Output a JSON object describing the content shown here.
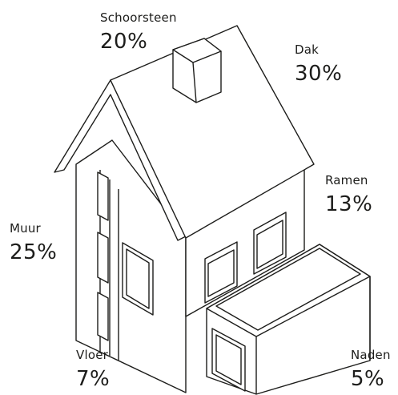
{
  "labels": {
    "chimney": {
      "name": "Schoorsteen",
      "pct": "20%"
    },
    "roof": {
      "name": "Dak",
      "pct": "30%"
    },
    "windows": {
      "name": "Ramen",
      "pct": "13%"
    },
    "wall": {
      "name": "Muur",
      "pct": "25%"
    },
    "floor": {
      "name": "Vloer",
      "pct": "7%"
    },
    "seams": {
      "name": "Naden",
      "pct": "5%"
    }
  },
  "colors": {
    "line": "#1d1d1b",
    "background": "#ffffff"
  }
}
